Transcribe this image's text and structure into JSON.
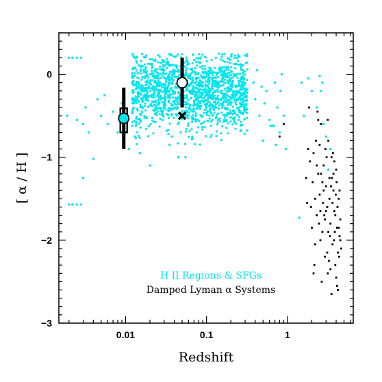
{
  "chart_data": {
    "type": "scatter",
    "xscale": "log",
    "xlim": [
      0.0015,
      6.5
    ],
    "ylim": [
      -3,
      0.5
    ],
    "xlabel": "Redshift",
    "ylabel": "[ α / H ]",
    "x_ticks": [
      {
        "value": 0.01,
        "label": "0.01"
      },
      {
        "value": 0.1,
        "label": "0.1"
      },
      {
        "value": 1,
        "label": "1"
      }
    ],
    "y_ticks": [
      {
        "value": 0,
        "label": "0"
      },
      {
        "value": -1,
        "label": "−1"
      },
      {
        "value": -2,
        "label": "−2"
      },
      {
        "value": -3,
        "label": "−3"
      }
    ],
    "grid": false,
    "legend_position": "bottom-center",
    "series": [
      {
        "name": "H II Regions & SFGs",
        "color": "#00e5ee",
        "marker": "dot",
        "cloud": {
          "x_range": [
            0.012,
            0.32
          ],
          "y_center": -0.22,
          "y_spread": 0.22,
          "count": 1600
        },
        "values": [
          [
            0.002,
            0.2
          ],
          [
            0.0022,
            0.2
          ],
          [
            0.0025,
            0.2
          ],
          [
            0.0028,
            0.2
          ],
          [
            0.0019,
            -0.5
          ],
          [
            0.0025,
            -0.55
          ],
          [
            0.003,
            -0.6
          ],
          [
            0.0032,
            -0.4
          ],
          [
            0.0035,
            -0.7
          ],
          [
            0.004,
            -1.02
          ],
          [
            0.0045,
            -0.3
          ],
          [
            0.005,
            -0.5
          ],
          [
            0.0055,
            -0.25
          ],
          [
            0.006,
            -0.6
          ],
          [
            0.007,
            -0.45
          ],
          [
            0.008,
            -0.7
          ],
          [
            0.009,
            -0.35
          ],
          [
            0.0095,
            -0.8
          ],
          [
            0.003,
            -1.25
          ],
          [
            0.002,
            -1.57
          ],
          [
            0.0022,
            -1.57
          ],
          [
            0.0025,
            -1.57
          ],
          [
            0.0028,
            -1.57
          ],
          [
            0.012,
            -0.62
          ],
          [
            0.013,
            -0.75
          ],
          [
            0.011,
            -0.9
          ],
          [
            0.015,
            -0.95
          ],
          [
            0.02,
            -1.1
          ],
          [
            0.045,
            -1.0
          ],
          [
            0.055,
            -1.0
          ],
          [
            0.035,
            -0.85
          ],
          [
            0.4,
            -0.3
          ],
          [
            0.45,
            -0.5
          ],
          [
            0.5,
            -0.8
          ],
          [
            0.55,
            -0.2
          ],
          [
            0.6,
            -0.55
          ],
          [
            0.62,
            -0.62
          ],
          [
            0.65,
            -0.62
          ],
          [
            0.68,
            -0.62
          ],
          [
            0.7,
            -0.1
          ],
          [
            0.72,
            -0.85
          ],
          [
            0.75,
            -0.4
          ],
          [
            0.8,
            -0.7
          ],
          [
            0.82,
            -0.2
          ],
          [
            0.85,
            0.0
          ],
          [
            0.9,
            -0.5
          ],
          [
            0.95,
            -0.9
          ],
          [
            0.38,
            -0.1
          ],
          [
            0.42,
            0.05
          ],
          [
            0.48,
            -0.15
          ],
          [
            0.52,
            -0.35
          ],
          [
            1.4,
            -1.73
          ],
          [
            1.5,
            -0.1
          ],
          [
            1.6,
            -0.5
          ],
          [
            1.8,
            -0.05
          ],
          [
            2.0,
            -0.2
          ],
          [
            2.3,
            -0.4
          ],
          [
            2.6,
            -0.2
          ],
          [
            2.8,
            -0.6
          ],
          [
            3.0,
            -0.75
          ],
          [
            3.2,
            -1.15
          ],
          [
            2.5,
            -0.02
          ],
          [
            2.7,
            -0.1
          ],
          [
            3.4,
            -0.9
          ],
          [
            0.25,
            -0.55
          ],
          [
            0.3,
            -0.45
          ],
          [
            0.28,
            0.05
          ]
        ]
      },
      {
        "name": "Damped Lyman α Systems",
        "color": "#000000",
        "marker": "dot",
        "values": [
          [
            1.9,
            -1.05
          ],
          [
            2.05,
            -1.3
          ],
          [
            2.2,
            -1.5
          ],
          [
            2.1,
            -0.95
          ],
          [
            2.3,
            -1.7
          ],
          [
            2.4,
            -1.2
          ],
          [
            2.5,
            -1.45
          ],
          [
            2.6,
            -0.6
          ],
          [
            2.7,
            -1.9
          ],
          [
            2.8,
            -1.1
          ],
          [
            2.9,
            -2.2
          ],
          [
            3.0,
            -1.35
          ],
          [
            3.1,
            -1.6
          ],
          [
            3.2,
            -0.8
          ],
          [
            3.3,
            -1.25
          ],
          [
            3.4,
            -1.8
          ],
          [
            3.5,
            -1.0
          ],
          [
            3.6,
            -2.05
          ],
          [
            3.7,
            -1.4
          ],
          [
            3.8,
            -1.65
          ],
          [
            3.9,
            -2.3
          ],
          [
            4.0,
            -1.15
          ],
          [
            4.1,
            -1.85
          ],
          [
            4.2,
            -2.6
          ],
          [
            4.3,
            -1.5
          ],
          [
            4.4,
            -1.95
          ],
          [
            4.5,
            -1.75
          ],
          [
            4.6,
            -2.1
          ],
          [
            2.15,
            -2.3
          ],
          [
            2.35,
            -0.45
          ],
          [
            2.55,
            -2.0
          ],
          [
            2.75,
            -1.55
          ],
          [
            2.95,
            -0.9
          ],
          [
            3.15,
            -2.4
          ],
          [
            3.35,
            -1.95
          ],
          [
            3.55,
            -1.25
          ],
          [
            3.75,
            -2.0
          ],
          [
            3.95,
            -1.45
          ],
          [
            4.15,
            -1.6
          ],
          [
            4.35,
            -2.2
          ],
          [
            2.25,
            -0.8
          ],
          [
            2.45,
            -1.8
          ],
          [
            2.65,
            -2.5
          ],
          [
            2.85,
            -1.7
          ],
          [
            3.05,
            -1.0
          ],
          [
            3.25,
            -2.25
          ],
          [
            3.45,
            -1.35
          ],
          [
            3.65,
            -0.95
          ],
          [
            3.85,
            -1.9
          ],
          [
            4.05,
            -1.3
          ],
          [
            2.0,
            -1.85
          ],
          [
            2.2,
            -2.05
          ],
          [
            2.4,
            -0.55
          ],
          [
            2.6,
            -1.2
          ],
          [
            2.8,
            -1.4
          ],
          [
            3.0,
            -1.65
          ],
          [
            3.2,
            -1.9
          ],
          [
            3.4,
            -2.35
          ],
          [
            3.6,
            -1.55
          ],
          [
            3.8,
            -1.05
          ],
          [
            4.0,
            -2.45
          ],
          [
            4.2,
            -2.15
          ],
          [
            4.4,
            -1.4
          ],
          [
            1.95,
            -1.6
          ],
          [
            2.1,
            -2.4
          ],
          [
            2.3,
            -1.1
          ],
          [
            2.5,
            -0.85
          ],
          [
            2.7,
            -1.3
          ],
          [
            2.9,
            -1.75
          ],
          [
            3.1,
            -2.15
          ],
          [
            3.3,
            -1.5
          ],
          [
            3.5,
            -2.65
          ],
          [
            3.7,
            -1.2
          ],
          [
            3.9,
            -1.7
          ],
          [
            4.1,
            -2.55
          ],
          [
            4.3,
            -1.85
          ],
          [
            4.5,
            -2.0
          ],
          [
            1.85,
            -0.4
          ],
          [
            2.55,
            -1.65
          ],
          [
            3.15,
            -0.55
          ],
          [
            1.7,
            -1.25
          ],
          [
            1.8,
            -0.9
          ],
          [
            1.75,
            -1.55
          ],
          [
            0.8,
            -0.75
          ],
          [
            0.9,
            -0.6
          ]
        ]
      },
      {
        "name": "low-z mean",
        "color": "#00e5ee",
        "marker": "open-circle",
        "values": [
          [
            0.0095,
            -0.53
          ]
        ],
        "errors": [
          0.37
        ]
      },
      {
        "name": "z~0.05 mean",
        "color": "#ffffff",
        "marker": "open-circle",
        "values": [
          [
            0.05,
            -0.1
          ]
        ],
        "errors": [
          0.3
        ]
      },
      {
        "name": "z~0.05 cross",
        "color": "#000000",
        "marker": "x",
        "values": [
          [
            0.05,
            -0.5
          ]
        ]
      }
    ],
    "legend": [
      {
        "label": "H II Regions & SFGs",
        "color": "#00e5ee"
      },
      {
        "label": "Damped Lyman α Systems",
        "color": "#000000"
      }
    ]
  }
}
